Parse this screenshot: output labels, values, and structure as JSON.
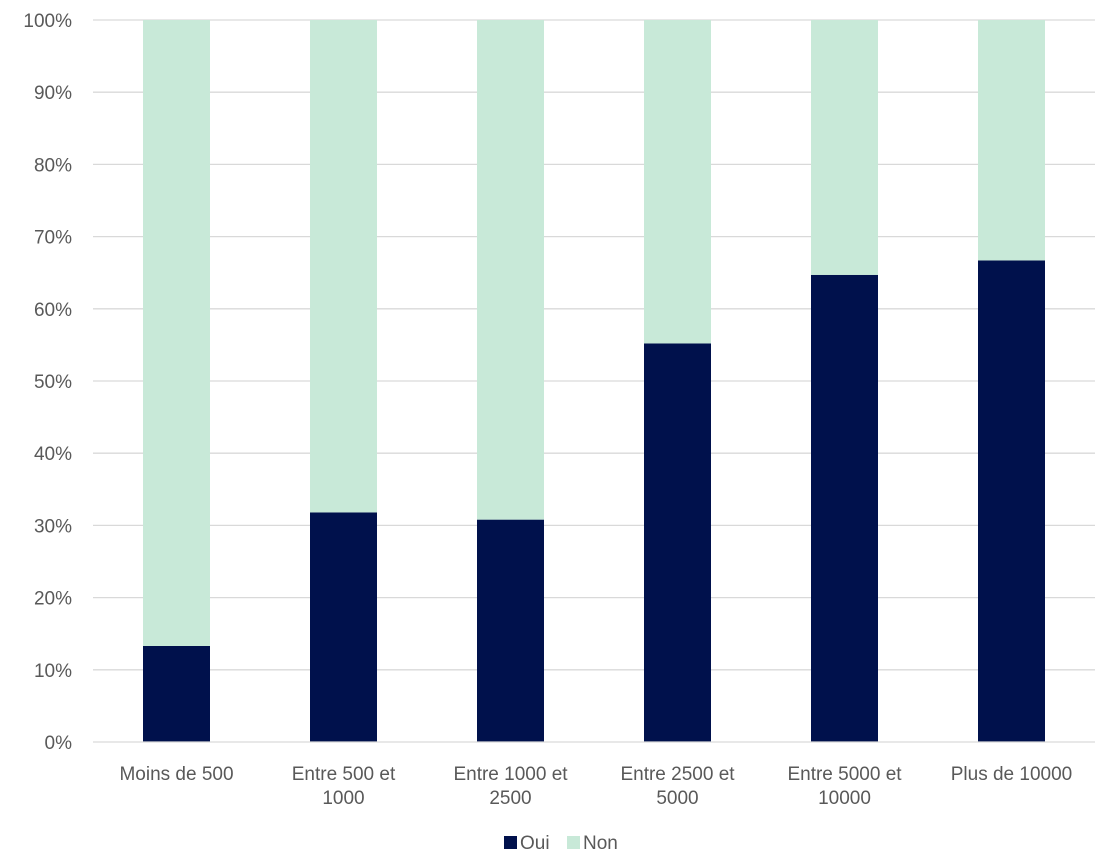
{
  "chart_data": {
    "type": "bar",
    "stacked": true,
    "percent_stacked": true,
    "categories": [
      [
        "Moins de 500"
      ],
      [
        "Entre 500 et",
        "1000"
      ],
      [
        "Entre 1000 et",
        "2500"
      ],
      [
        "Entre 2500 et",
        "5000"
      ],
      [
        "Entre 5000 et",
        "10000"
      ],
      [
        "Plus de 10000"
      ]
    ],
    "series": [
      {
        "name": "Oui",
        "color": "#00114C",
        "values": [
          13.3,
          31.8,
          30.8,
          55.2,
          64.7,
          66.7
        ]
      },
      {
        "name": "Non",
        "color": "#C8E9D8",
        "values": [
          86.7,
          68.2,
          69.2,
          44.8,
          35.3,
          33.3
        ]
      }
    ],
    "ylim": [
      0,
      100
    ],
    "yticks": [
      "0%",
      "10%",
      "20%",
      "30%",
      "40%",
      "50%",
      "60%",
      "70%",
      "80%",
      "90%",
      "100%"
    ],
    "grid": true,
    "legend_position": "bottom"
  }
}
